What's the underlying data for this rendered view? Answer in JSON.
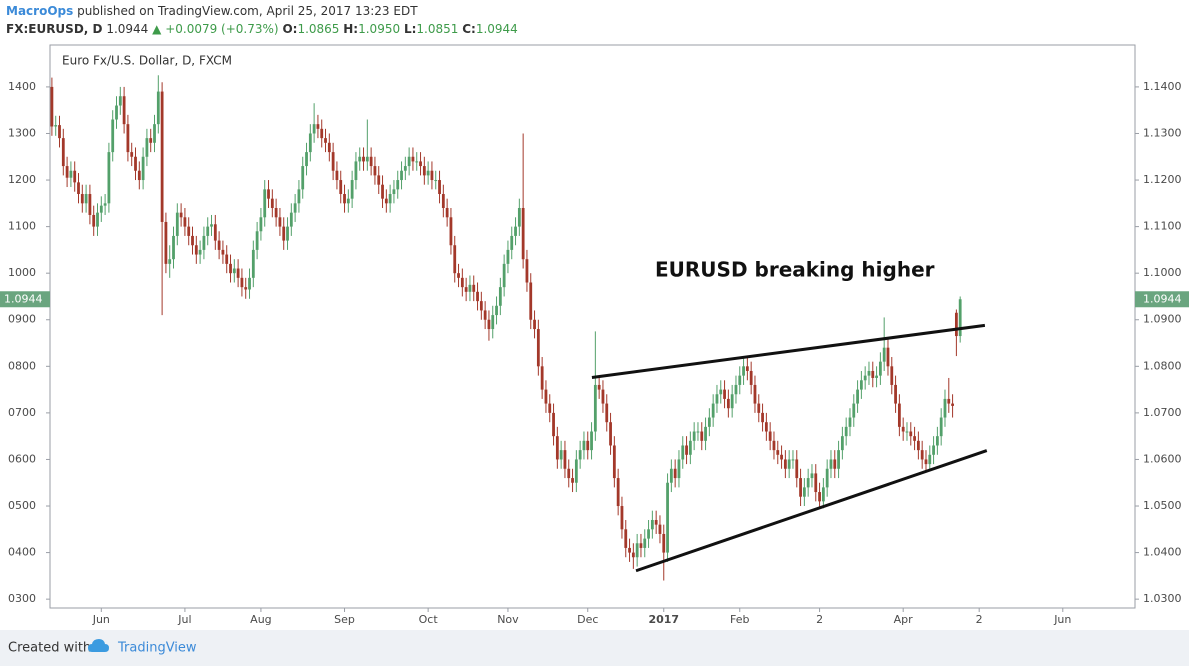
{
  "header": {
    "publisher": "MacroOps",
    "published": "published on TradingView.com, April 25, 2017 13:23 EDT",
    "symbol": "FX:EURUSD, D",
    "last": "1.0944",
    "arrow": "▲",
    "change": "+0.0079 (+0.73%)",
    "ohlc": [
      {
        "label": "O:",
        "value": "1.0865"
      },
      {
        "label": "H:",
        "value": "1.0950"
      },
      {
        "label": "L:",
        "value": "1.0851"
      },
      {
        "label": "C:",
        "value": "1.0944"
      }
    ]
  },
  "chart_data": {
    "type": "candlestick",
    "title": "Euro Fx/U.S. Dollar, D, FXCM",
    "annotation": "EURUSD breaking higher",
    "up_color": "#53a06a",
    "down_color": "#a3382a",
    "last_price": 1.0944,
    "last_price_color": "#6aa57f",
    "xlim": [
      -0.5,
      285
    ],
    "ylim": [
      1.0281,
      1.149
    ],
    "y2lim": [
      1.0281,
      1.149
    ],
    "xticks": [
      {
        "value": 13,
        "label": "Jun"
      },
      {
        "value": 35,
        "label": "Jul"
      },
      {
        "value": 55,
        "label": "Aug"
      },
      {
        "value": 77,
        "label": "Sep"
      },
      {
        "value": 99,
        "label": "Oct"
      },
      {
        "value": 120,
        "label": "Nov"
      },
      {
        "value": 141,
        "label": "Dec"
      },
      {
        "value": 161,
        "label": "2017",
        "bold": true
      },
      {
        "value": 181,
        "label": "Feb"
      },
      {
        "value": 202,
        "label": "2"
      },
      {
        "value": 224,
        "label": "Apr"
      },
      {
        "value": 244,
        "label": "2"
      },
      {
        "value": 266,
        "label": "Jun"
      }
    ],
    "yticks": [
      {
        "value": 1.14,
        "label": "1400"
      },
      {
        "value": 1.13,
        "label": "1300"
      },
      {
        "value": 1.12,
        "label": "1200"
      },
      {
        "value": 1.11,
        "label": "1100"
      },
      {
        "value": 1.1,
        "label": "1000"
      },
      {
        "value": 1.09,
        "label": "0900"
      },
      {
        "value": 1.08,
        "label": "0800"
      },
      {
        "value": 1.07,
        "label": "0700"
      },
      {
        "value": 1.06,
        "label": "0600"
      },
      {
        "value": 1.05,
        "label": "0500"
      },
      {
        "value": 1.04,
        "label": "0400"
      },
      {
        "value": 1.03,
        "label": "0300"
      }
    ],
    "y2ticks": [
      {
        "value": 1.14,
        "label": "1.1400"
      },
      {
        "value": 1.13,
        "label": "1.1300"
      },
      {
        "value": 1.12,
        "label": "1.1200"
      },
      {
        "value": 1.11,
        "label": "1.1100"
      },
      {
        "value": 1.1,
        "label": "1.1000"
      },
      {
        "value": 1.09,
        "label": "1.0900"
      },
      {
        "value": 1.08,
        "label": "1.0800"
      },
      {
        "value": 1.07,
        "label": "1.0700"
      },
      {
        "value": 1.06,
        "label": "1.0600"
      },
      {
        "value": 1.05,
        "label": "1.0500"
      },
      {
        "value": 1.04,
        "label": "1.0400"
      },
      {
        "value": 1.03,
        "label": "1.0300"
      }
    ],
    "trendlines": [
      {
        "x": [
          142.1,
          245.5
        ],
        "y": [
          1.0776,
          1.0888
        ]
      },
      {
        "x": [
          153.7,
          246
        ],
        "y": [
          1.0361,
          1.0619
        ]
      }
    ],
    "open": [
      1.14,
      1.1315,
      1.1318,
      1.129,
      1.123,
      1.1205,
      1.122,
      1.1195,
      1.117,
      1.115,
      1.117,
      1.1125,
      1.11,
      1.113,
      1.1145,
      1.115,
      1.126,
      1.133,
      1.136,
      1.138,
      1.132,
      1.126,
      1.125,
      1.122,
      1.12,
      1.125,
      1.129,
      1.128,
      1.132,
      1.139,
      1.111,
      1.102,
      1.103,
      1.108,
      1.113,
      1.112,
      1.11,
      1.108,
      1.106,
      1.104,
      1.105,
      1.108,
      1.11,
      1.1105,
      1.107,
      1.105,
      1.104,
      1.102,
      1.1,
      1.101,
      1.099,
      1.097,
      1.0965,
      1.099,
      1.105,
      1.109,
      1.112,
      1.118,
      1.116,
      1.114,
      1.112,
      1.11,
      1.107,
      1.11,
      1.113,
      1.115,
      1.118,
      1.123,
      1.126,
      1.13,
      1.132,
      1.131,
      1.129,
      1.128,
      1.126,
      1.122,
      1.12,
      1.117,
      1.115,
      1.116,
      1.12,
      1.124,
      1.125,
      1.124,
      1.125,
      1.123,
      1.121,
      1.119,
      1.116,
      1.115,
      1.117,
      1.118,
      1.12,
      1.122,
      1.123,
      1.125,
      1.124,
      1.124,
      1.123,
      1.121,
      1.122,
      1.12,
      1.12,
      1.117,
      1.114,
      1.112,
      1.106,
      1.1,
      1.099,
      1.097,
      1.096,
      1.0975,
      1.096,
      1.094,
      1.092,
      1.09,
      1.088,
      1.091,
      1.093,
      1.097,
      1.102,
      1.105,
      1.108,
      1.11,
      1.114,
      1.103,
      1.098,
      1.09,
      1.088,
      1.08,
      1.075,
      1.072,
      1.07,
      1.065,
      1.06,
      1.062,
      1.058,
      1.056,
      1.055,
      1.06,
      1.062,
      1.064,
      1.062,
      1.066,
      1.076,
      1.075,
      1.072,
      1.068,
      1.063,
      1.056,
      1.05,
      1.045,
      1.041,
      1.04,
      1.039,
      1.042,
      1.041,
      1.043,
      1.045,
      1.047,
      1.046,
      1.044,
      1.04,
      1.055,
      1.058,
      1.056,
      1.06,
      1.063,
      1.061,
      1.064,
      1.066,
      1.066,
      1.064,
      1.067,
      1.069,
      1.072,
      1.074,
      1.075,
      1.073,
      1.071,
      1.074,
      1.076,
      1.078,
      1.08,
      1.079,
      1.076,
      1.072,
      1.07,
      1.068,
      1.066,
      1.064,
      1.062,
      1.061,
      1.06,
      1.058,
      1.06,
      1.06,
      1.056,
      1.052,
      1.054,
      1.056,
      1.057,
      1.053,
      1.051,
      1.054,
      1.058,
      1.06,
      1.058,
      1.062,
      1.065,
      1.067,
      1.069,
      1.072,
      1.075,
      1.077,
      1.078,
      1.079,
      1.0775,
      1.078,
      1.081,
      1.084,
      1.08,
      1.076,
      1.072,
      1.067,
      1.066,
      1.066,
      1.065,
      1.064,
      1.062,
      1.06,
      1.059,
      1.061,
      1.063,
      1.065,
      1.069,
      1.073,
      1.072,
      1.0915,
      1.0865
    ],
    "high": [
      1.142,
      1.1338,
      1.1338,
      1.131,
      1.125,
      1.124,
      1.124,
      1.1215,
      1.119,
      1.119,
      1.119,
      1.1145,
      1.115,
      1.1165,
      1.117,
      1.128,
      1.135,
      1.138,
      1.14,
      1.14,
      1.134,
      1.128,
      1.127,
      1.124,
      1.127,
      1.131,
      1.131,
      1.134,
      1.1425,
      1.141,
      1.113,
      1.106,
      1.11,
      1.115,
      1.115,
      1.114,
      1.112,
      1.11,
      1.108,
      1.107,
      1.11,
      1.112,
      1.1125,
      1.1125,
      1.109,
      1.107,
      1.106,
      1.104,
      1.103,
      1.103,
      1.101,
      1.099,
      1.101,
      1.107,
      1.111,
      1.114,
      1.12,
      1.12,
      1.118,
      1.116,
      1.114,
      1.112,
      1.112,
      1.115,
      1.117,
      1.12,
      1.125,
      1.128,
      1.132,
      1.1365,
      1.134,
      1.133,
      1.131,
      1.13,
      1.128,
      1.124,
      1.122,
      1.119,
      1.118,
      1.122,
      1.126,
      1.127,
      1.127,
      1.133,
      1.127,
      1.125,
      1.123,
      1.121,
      1.118,
      1.119,
      1.12,
      1.122,
      1.124,
      1.125,
      1.127,
      1.127,
      1.126,
      1.126,
      1.125,
      1.124,
      1.124,
      1.122,
      1.122,
      1.119,
      1.116,
      1.114,
      1.108,
      1.102,
      1.101,
      1.099,
      1.0995,
      1.0995,
      1.098,
      1.096,
      1.094,
      1.092,
      1.093,
      1.095,
      1.099,
      1.104,
      1.107,
      1.11,
      1.112,
      1.116,
      1.13,
      1.105,
      1.1,
      1.092,
      1.09,
      1.082,
      1.077,
      1.074,
      1.072,
      1.067,
      1.064,
      1.064,
      1.06,
      1.058,
      1.062,
      1.064,
      1.066,
      1.066,
      1.068,
      1.0875,
      1.078,
      1.077,
      1.074,
      1.07,
      1.065,
      1.058,
      1.052,
      1.047,
      1.043,
      1.042,
      1.044,
      1.044,
      1.045,
      1.047,
      1.049,
      1.049,
      1.048,
      1.046,
      1.057,
      1.06,
      1.06,
      1.062,
      1.065,
      1.065,
      1.066,
      1.068,
      1.068,
      1.068,
      1.069,
      1.071,
      1.074,
      1.076,
      1.077,
      1.077,
      1.075,
      1.076,
      1.078,
      1.08,
      1.082,
      1.082,
      1.081,
      1.078,
      1.074,
      1.072,
      1.07,
      1.068,
      1.066,
      1.064,
      1.063,
      1.062,
      1.062,
      1.062,
      1.062,
      1.058,
      1.056,
      1.058,
      1.059,
      1.059,
      1.055,
      1.056,
      1.06,
      1.062,
      1.062,
      1.064,
      1.067,
      1.069,
      1.071,
      1.074,
      1.077,
      1.079,
      1.08,
      1.081,
      1.081,
      1.08,
      1.083,
      1.0905,
      1.086,
      1.082,
      1.078,
      1.074,
      1.069,
      1.068,
      1.068,
      1.067,
      1.066,
      1.064,
      1.062,
      1.063,
      1.065,
      1.067,
      1.071,
      1.075,
      1.0775,
      1.074,
      1.0922,
      1.095
    ],
    "low": [
      1.1295,
      1.1295,
      1.127,
      1.121,
      1.1185,
      1.1185,
      1.1175,
      1.115,
      1.113,
      1.113,
      1.1105,
      1.108,
      1.108,
      1.111,
      1.1125,
      1.113,
      1.124,
      1.131,
      1.134,
      1.13,
      1.124,
      1.123,
      1.12,
      1.118,
      1.118,
      1.123,
      1.126,
      1.126,
      1.13,
      1.091,
      1.1,
      1.099,
      1.101,
      1.106,
      1.11,
      1.108,
      1.106,
      1.104,
      1.102,
      1.102,
      1.103,
      1.106,
      1.108,
      1.105,
      1.103,
      1.102,
      1.1,
      1.098,
      1.098,
      1.097,
      1.095,
      1.0945,
      1.0945,
      1.097,
      1.103,
      1.107,
      1.11,
      1.114,
      1.112,
      1.11,
      1.108,
      1.105,
      1.105,
      1.108,
      1.111,
      1.113,
      1.116,
      1.121,
      1.124,
      1.128,
      1.129,
      1.127,
      1.126,
      1.124,
      1.12,
      1.118,
      1.115,
      1.113,
      1.113,
      1.114,
      1.118,
      1.122,
      1.122,
      1.122,
      1.121,
      1.119,
      1.117,
      1.114,
      1.113,
      1.113,
      1.115,
      1.116,
      1.118,
      1.12,
      1.121,
      1.122,
      1.122,
      1.121,
      1.119,
      1.119,
      1.118,
      1.118,
      1.115,
      1.112,
      1.11,
      1.104,
      1.098,
      1.097,
      1.095,
      1.094,
      1.094,
      1.094,
      1.092,
      1.09,
      1.088,
      1.0855,
      1.086,
      1.089,
      1.091,
      1.095,
      1.1,
      1.103,
      1.106,
      1.108,
      1.101,
      1.096,
      1.088,
      1.086,
      1.078,
      1.073,
      1.07,
      1.068,
      1.063,
      1.058,
      1.058,
      1.056,
      1.054,
      1.053,
      1.053,
      1.058,
      1.06,
      1.06,
      1.06,
      1.064,
      1.073,
      1.07,
      1.066,
      1.061,
      1.054,
      1.048,
      1.043,
      1.039,
      1.038,
      1.0365,
      1.037,
      1.039,
      1.039,
      1.041,
      1.043,
      1.044,
      1.042,
      1.034,
      1.038,
      1.053,
      1.054,
      1.054,
      1.058,
      1.059,
      1.059,
      1.062,
      1.064,
      1.062,
      1.062,
      1.065,
      1.067,
      1.07,
      1.072,
      1.071,
      1.069,
      1.069,
      1.072,
      1.074,
      1.076,
      1.077,
      1.074,
      1.07,
      1.068,
      1.066,
      1.064,
      1.062,
      1.06,
      1.059,
      1.058,
      1.056,
      1.056,
      1.058,
      1.054,
      1.05,
      1.05,
      1.052,
      1.054,
      1.051,
      1.0495,
      1.0495,
      1.052,
      1.056,
      1.056,
      1.056,
      1.06,
      1.063,
      1.065,
      1.067,
      1.07,
      1.073,
      1.075,
      1.076,
      1.0755,
      1.0755,
      1.076,
      1.079,
      1.078,
      1.074,
      1.07,
      1.065,
      1.064,
      1.064,
      1.063,
      1.062,
      1.06,
      1.058,
      1.0575,
      1.0575,
      1.059,
      1.061,
      1.063,
      1.067,
      1.07,
      1.069,
      1.0822,
      1.0851
    ],
    "close": [
      1.1315,
      1.1318,
      1.129,
      1.123,
      1.1205,
      1.122,
      1.1195,
      1.117,
      1.115,
      1.117,
      1.1125,
      1.11,
      1.113,
      1.1145,
      1.115,
      1.126,
      1.133,
      1.136,
      1.138,
      1.132,
      1.126,
      1.125,
      1.122,
      1.12,
      1.125,
      1.129,
      1.128,
      1.132,
      1.139,
      1.111,
      1.102,
      1.103,
      1.108,
      1.113,
      1.112,
      1.11,
      1.108,
      1.106,
      1.104,
      1.105,
      1.108,
      1.11,
      1.1105,
      1.107,
      1.105,
      1.104,
      1.102,
      1.1,
      1.101,
      1.099,
      1.097,
      1.0965,
      1.099,
      1.105,
      1.109,
      1.112,
      1.118,
      1.116,
      1.114,
      1.112,
      1.11,
      1.107,
      1.11,
      1.113,
      1.115,
      1.118,
      1.123,
      1.126,
      1.13,
      1.132,
      1.131,
      1.129,
      1.128,
      1.126,
      1.122,
      1.12,
      1.117,
      1.115,
      1.116,
      1.12,
      1.124,
      1.125,
      1.124,
      1.125,
      1.123,
      1.121,
      1.119,
      1.116,
      1.115,
      1.117,
      1.118,
      1.12,
      1.122,
      1.123,
      1.125,
      1.124,
      1.124,
      1.123,
      1.121,
      1.122,
      1.12,
      1.12,
      1.117,
      1.114,
      1.112,
      1.106,
      1.1,
      1.099,
      1.097,
      1.096,
      1.0975,
      1.096,
      1.094,
      1.092,
      1.09,
      1.088,
      1.091,
      1.093,
      1.097,
      1.102,
      1.105,
      1.108,
      1.11,
      1.114,
      1.103,
      1.098,
      1.09,
      1.088,
      1.08,
      1.075,
      1.072,
      1.07,
      1.065,
      1.06,
      1.062,
      1.058,
      1.056,
      1.055,
      1.06,
      1.062,
      1.064,
      1.062,
      1.066,
      1.076,
      1.075,
      1.072,
      1.068,
      1.063,
      1.056,
      1.05,
      1.045,
      1.041,
      1.04,
      1.039,
      1.042,
      1.041,
      1.043,
      1.045,
      1.047,
      1.046,
      1.044,
      1.04,
      1.055,
      1.058,
      1.056,
      1.06,
      1.063,
      1.061,
      1.064,
      1.066,
      1.066,
      1.064,
      1.067,
      1.069,
      1.072,
      1.074,
      1.075,
      1.073,
      1.071,
      1.074,
      1.076,
      1.078,
      1.08,
      1.079,
      1.076,
      1.072,
      1.07,
      1.068,
      1.066,
      1.064,
      1.062,
      1.061,
      1.06,
      1.058,
      1.06,
      1.06,
      1.056,
      1.052,
      1.054,
      1.056,
      1.057,
      1.053,
      1.051,
      1.054,
      1.058,
      1.06,
      1.058,
      1.062,
      1.065,
      1.067,
      1.069,
      1.072,
      1.075,
      1.077,
      1.078,
      1.079,
      1.0775,
      1.078,
      1.081,
      1.084,
      1.08,
      1.076,
      1.072,
      1.067,
      1.066,
      1.066,
      1.065,
      1.064,
      1.062,
      1.06,
      1.059,
      1.061,
      1.063,
      1.065,
      1.069,
      1.073,
      1.072,
      1.0715,
      1.0865,
      1.0944
    ]
  },
  "footer": {
    "created": "Created with",
    "brand": "TradingView"
  }
}
